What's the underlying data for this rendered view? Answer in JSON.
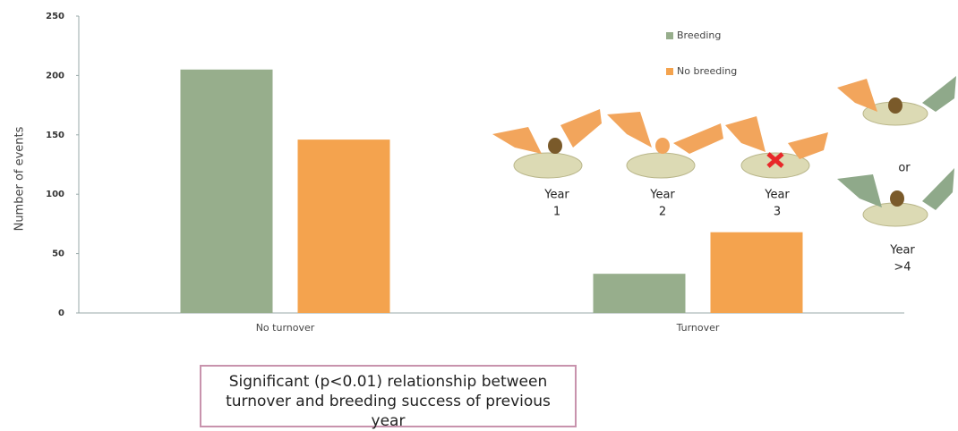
{
  "chart_data": {
    "type": "bar",
    "y_label": "Number of events",
    "categories": [
      "No turnover",
      "Turnover"
    ],
    "series": [
      {
        "name": "Breeding",
        "color": "#97ae8c",
        "values": [
          205,
          33
        ]
      },
      {
        "name": "No breeding",
        "color": "#f4a34e",
        "values": [
          146,
          68
        ]
      }
    ],
    "ylim": [
      0,
      250
    ],
    "yticks": [
      0,
      50,
      100,
      150,
      200,
      250
    ],
    "annotations": [
      {
        "lines": [
          "Year",
          "1"
        ]
      },
      {
        "lines": [
          "Year",
          "2"
        ]
      },
      {
        "lines": [
          "Year",
          "3"
        ]
      },
      {
        "lines": [
          "Year",
          ">4"
        ]
      },
      {
        "lines": [
          "or"
        ]
      }
    ],
    "note": "Significant (p<0.01) relationship between turnover and breeding success of previous year"
  }
}
